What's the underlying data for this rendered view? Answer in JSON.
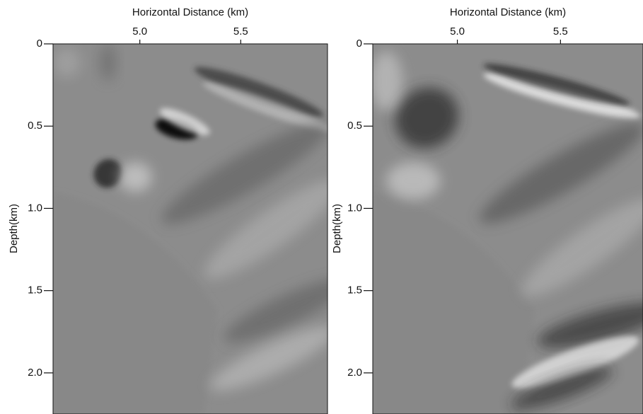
{
  "chart_data": [
    {
      "type": "image",
      "x_label": "Horizontal Distance (km)",
      "y_label": "Depth(km)",
      "xlim": [
        4.57,
        5.93
      ],
      "ylim": [
        0,
        2.25
      ],
      "xticks": [
        {
          "value": 5,
          "label": "5.0"
        },
        {
          "value": 5.5,
          "label": "5.5"
        }
      ],
      "yticks": [
        0,
        0.5,
        {
          "value": 1,
          "label": "1.0"
        },
        1.5,
        {
          "value": 2,
          "label": "2.0"
        }
      ]
    },
    {
      "type": "image",
      "x_label": "Horizontal Distance (km)",
      "y_label": "Depth(km)",
      "xlim": [
        4.59,
        5.9
      ],
      "ylim": [
        0,
        2.25
      ],
      "xticks": [
        {
          "value": 5,
          "label": "5.0"
        },
        {
          "value": 5.5,
          "label": "5.5"
        }
      ],
      "yticks": [
        0,
        0.5,
        {
          "value": 1,
          "label": "1.0"
        },
        1.5,
        {
          "value": 2,
          "label": "2.0"
        }
      ]
    }
  ]
}
